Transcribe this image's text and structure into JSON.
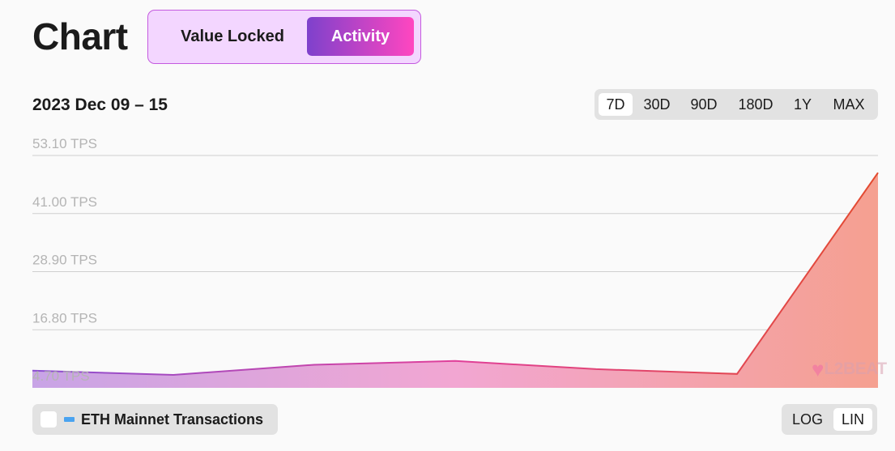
{
  "header": {
    "title": "Chart",
    "tabs": [
      {
        "label": "Value Locked",
        "active": false
      },
      {
        "label": "Activity",
        "active": true
      }
    ]
  },
  "date_range": "2023 Dec 09 – 15",
  "range_buttons": [
    {
      "label": "7D",
      "active": true
    },
    {
      "label": "30D",
      "active": false
    },
    {
      "label": "90D",
      "active": false
    },
    {
      "label": "180D",
      "active": false
    },
    {
      "label": "1Y",
      "active": false
    },
    {
      "label": "MAX",
      "active": false
    }
  ],
  "legend": {
    "label": "ETH Mainnet Transactions",
    "checked": false,
    "swatch_color": "#4aa3f0"
  },
  "scale_buttons": [
    {
      "label": "LOG",
      "active": false
    },
    {
      "label": "LIN",
      "active": true
    }
  ],
  "watermark": {
    "heart": "♥",
    "text": "L2BEAT"
  },
  "chart_data": {
    "type": "area",
    "x": [
      "2023-12-09",
      "2023-12-10",
      "2023-12-11",
      "2023-12-12",
      "2023-12-13",
      "2023-12-14",
      "2023-12-15"
    ],
    "series": [
      {
        "values": [
          8.3,
          7.4,
          9.5,
          10.3,
          8.6,
          7.6,
          49.5
        ]
      }
    ],
    "yticks": [
      "53.10 TPS",
      "41.00 TPS",
      "28.90 TPS",
      "16.80 TPS",
      "4.70 TPS"
    ],
    "ylim": [
      4.7,
      53.1
    ],
    "grid": true,
    "colors": {
      "start": "#8b4fd1",
      "mid": "#e0409a",
      "end": "#e34a2e",
      "fill_start": "#c8a4e6",
      "fill_mid": "#f2a6d2",
      "fill_end": "#f5a090",
      "grid": "#cfcfcf"
    }
  }
}
